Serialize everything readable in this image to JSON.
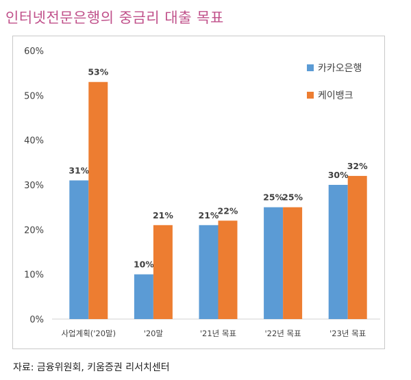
{
  "title": "인터넷전문은행의 중금리 대출 목표",
  "source": "자료: 금융위원회, 키움증권 리서치센터",
  "chart_data": {
    "type": "bar",
    "categories": [
      "사업계획('20말)",
      "'20말",
      "'21년 목표",
      "'22년 목표",
      "'23년 목표"
    ],
    "series": [
      {
        "name": "카카오은행",
        "values": [
          31,
          10,
          21,
          25,
          30
        ],
        "color": "#5b9bd5"
      },
      {
        "name": "케이뱅크",
        "values": [
          53,
          21,
          22,
          25,
          32
        ],
        "color": "#ed7d31"
      }
    ],
    "ylim": [
      0,
      60
    ],
    "yticks": [
      "0%",
      "10%",
      "20%",
      "30%",
      "40%",
      "50%",
      "60%"
    ],
    "ytick_values": [
      0,
      10,
      20,
      30,
      40,
      50,
      60
    ],
    "value_suffix": "%",
    "grid": false,
    "legend": "top-right"
  }
}
